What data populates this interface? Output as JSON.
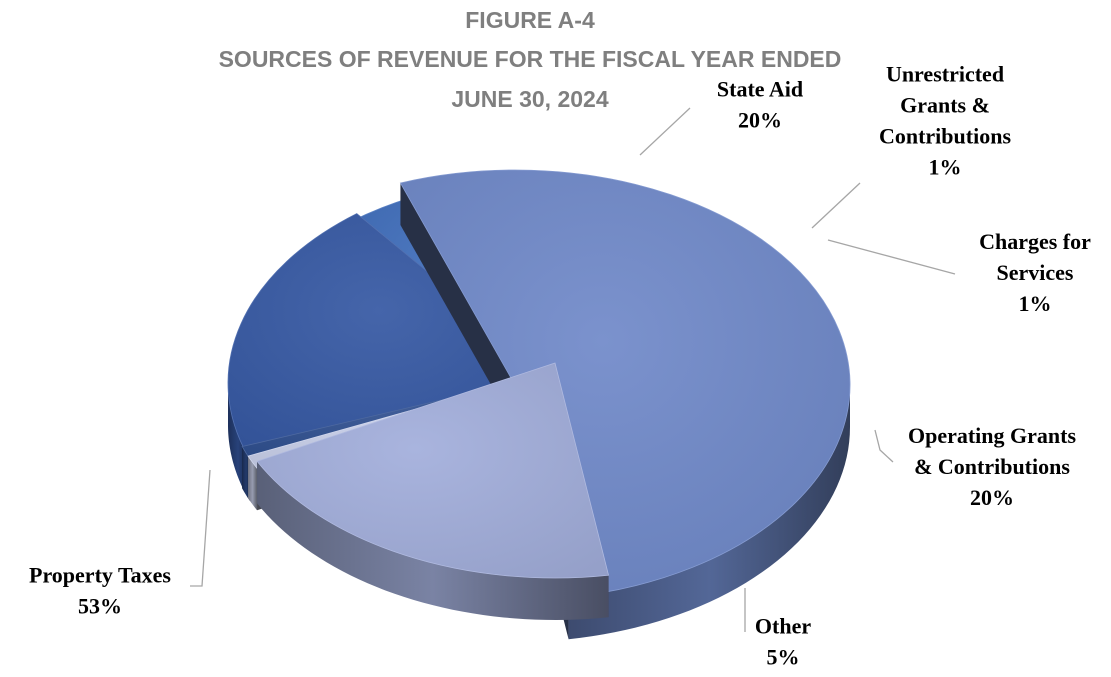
{
  "chart_data": {
    "type": "pie",
    "style": "3d-exploded",
    "title_lines": [
      "FIGURE A-4",
      "SOURCES OF REVENUE FOR THE FISCAL YEAR ENDED",
      "JUNE 30, 2024"
    ],
    "slices": [
      {
        "key": "property",
        "label_lines": [
          "Property Taxes"
        ],
        "value": 53,
        "value_label": "53%",
        "color": "#6f89c9"
      },
      {
        "key": "state",
        "label_lines": [
          "State Aid"
        ],
        "value": 20,
        "value_label": "20%",
        "color": "#a2aedb"
      },
      {
        "key": "unrestricted",
        "label_lines": [
          "Unrestricted",
          "Grants &",
          "Contributions"
        ],
        "value": 1,
        "value_label": "1%",
        "color": "#c9d0ea"
      },
      {
        "key": "charges",
        "label_lines": [
          "Charges for",
          "Services"
        ],
        "value": 1,
        "value_label": "1%",
        "color": "#2f4f8f"
      },
      {
        "key": "operating",
        "label_lines": [
          "Operating Grants",
          "& Contributions"
        ],
        "value": 20,
        "value_label": "20%",
        "color": "#3558a3"
      },
      {
        "key": "other",
        "label_lines": [
          "Other"
        ],
        "value": 5,
        "value_label": "5%",
        "color": "#3f6dbb"
      }
    ]
  }
}
